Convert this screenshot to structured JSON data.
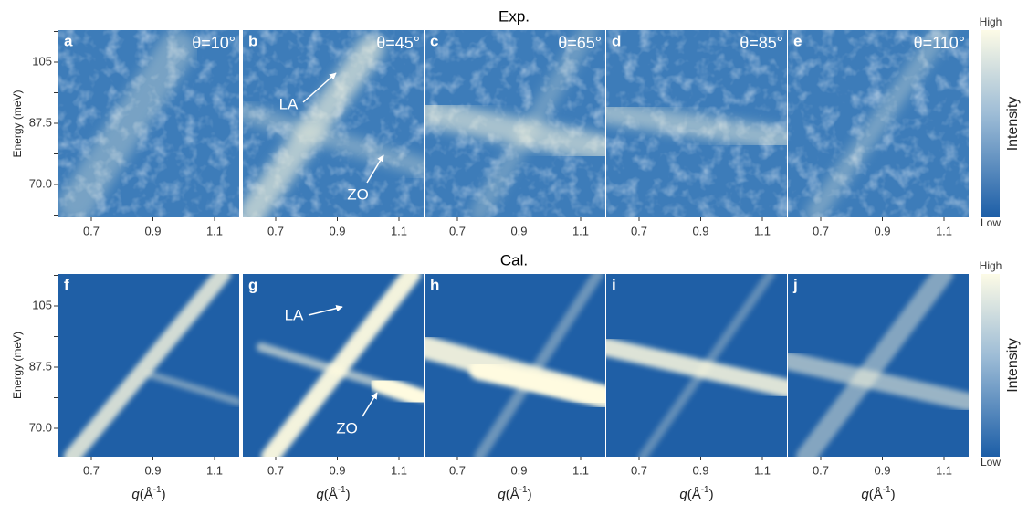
{
  "rows": [
    {
      "title": "Exp.",
      "panels": [
        {
          "label": "a",
          "theta": "θ=10°"
        },
        {
          "label": "b",
          "theta": "θ=45°",
          "annotations": [
            "LA",
            "ZO"
          ]
        },
        {
          "label": "c",
          "theta": "θ=65°"
        },
        {
          "label": "d",
          "theta": "θ=85°"
        },
        {
          "label": "e",
          "theta": "θ=110°"
        }
      ]
    },
    {
      "title": "Cal.",
      "panels": [
        {
          "label": "f"
        },
        {
          "label": "g",
          "annotations": [
            "LA",
            "ZO"
          ]
        },
        {
          "label": "h"
        },
        {
          "label": "i"
        },
        {
          "label": "j"
        }
      ]
    }
  ],
  "y_axis": {
    "label": "Energy (meV)",
    "ticks": [
      "105",
      "87.5",
      "70.0"
    ]
  },
  "x_axis": {
    "symbol": "q",
    "unit": "(Å",
    "exponent": "-1",
    "close": ")",
    "ticks": [
      "0.7",
      "0.9",
      "1.1"
    ]
  },
  "colorbar": {
    "high": "High",
    "low": "Low",
    "label": "Intensity"
  }
}
